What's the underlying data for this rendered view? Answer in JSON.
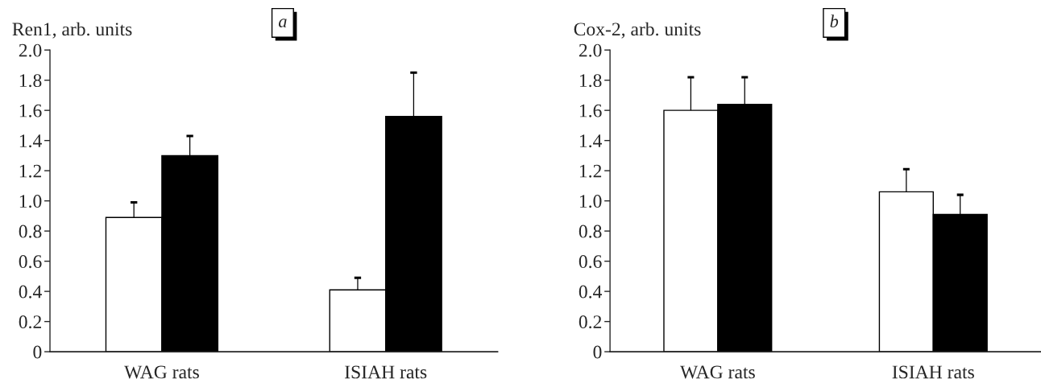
{
  "chart_data": [
    {
      "type": "bar",
      "title": "a",
      "ylabel": "Ren1, arb. units",
      "categories": [
        "WAG rats",
        "ISIAH rats"
      ],
      "series": [
        {
          "color": "#ffffff",
          "values": [
            0.89,
            0.41
          ],
          "errors": [
            [
              0.89,
              0.99
            ],
            [
              0.41,
              0.49
            ]
          ]
        },
        {
          "color": "#000000",
          "values": [
            1.3,
            1.56
          ],
          "errors": [
            [
              1.3,
              1.43
            ],
            [
              1.56,
              1.85
            ]
          ]
        }
      ],
      "ylim": [
        0,
        2.0
      ],
      "yticks": [
        {
          "value": 0,
          "label": "0"
        },
        0.2,
        0.4,
        0.6,
        0.8,
        {
          "value": 1,
          "label": "1.0"
        },
        1.2,
        1.4,
        1.6,
        1.8,
        {
          "value": 2,
          "label": "2.0"
        }
      ],
      "grid": false
    },
    {
      "type": "bar",
      "title": "b",
      "ylabel": "Cox-2, arb. units",
      "categories": [
        "WAG rats",
        "ISIAH rats"
      ],
      "series": [
        {
          "color": "#ffffff",
          "values": [
            1.6,
            1.06
          ],
          "errors": [
            [
              1.6,
              1.82
            ],
            [
              1.06,
              1.21
            ]
          ]
        },
        {
          "color": "#000000",
          "values": [
            1.64,
            0.91
          ],
          "errors": [
            [
              1.64,
              1.82
            ],
            [
              0.91,
              1.04
            ]
          ]
        }
      ],
      "ylim": [
        0,
        2.0
      ],
      "yticks": [
        {
          "value": 0,
          "label": "0"
        },
        0.2,
        0.4,
        0.6,
        0.8,
        {
          "value": 1,
          "label": "1.0"
        },
        1.2,
        1.4,
        1.6,
        1.8,
        {
          "value": 2,
          "label": "2.0"
        }
      ],
      "grid": false
    }
  ]
}
